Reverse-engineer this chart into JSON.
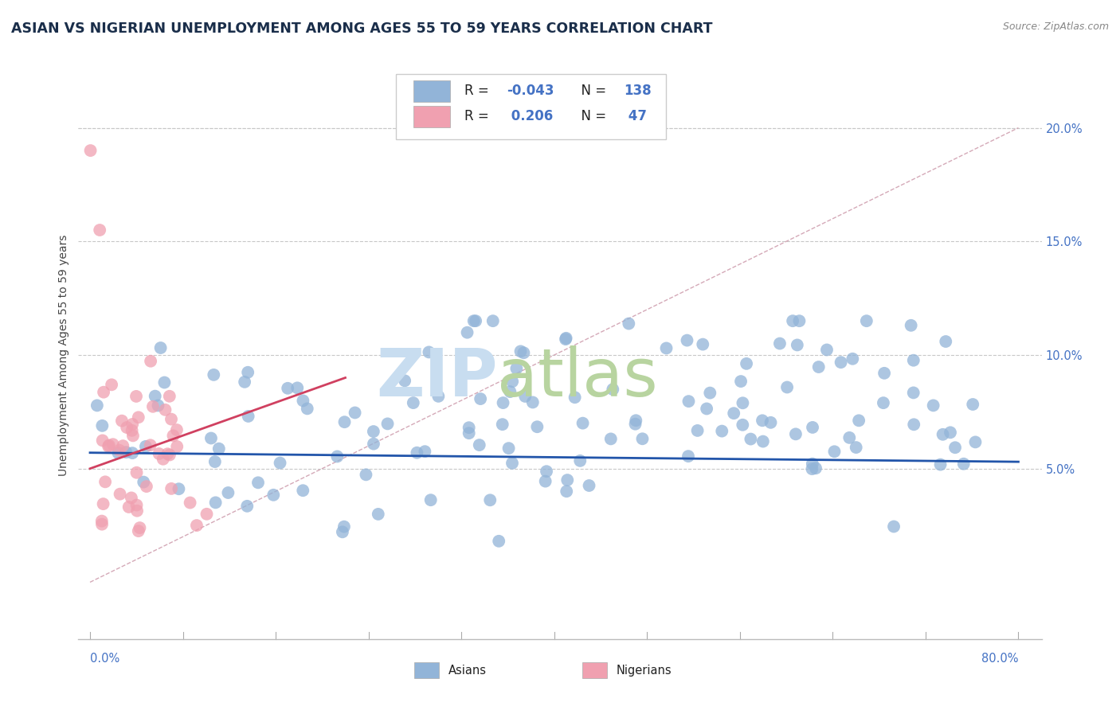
{
  "title": "ASIAN VS NIGERIAN UNEMPLOYMENT AMONG AGES 55 TO 59 YEARS CORRELATION CHART",
  "source": "Source: ZipAtlas.com",
  "ylabel": "Unemployment Among Ages 55 to 59 years",
  "ytick_labels": [
    "5.0%",
    "10.0%",
    "15.0%",
    "20.0%"
  ],
  "ytick_values": [
    0.05,
    0.1,
    0.15,
    0.2
  ],
  "xlim": [
    -0.01,
    0.82
  ],
  "ylim": [
    -0.025,
    0.225
  ],
  "asian_color": "#92b4d8",
  "nigerian_color": "#f0a0b0",
  "blue_line_color": "#2255aa",
  "pink_line_color": "#d04060",
  "ref_line_color": "#d0a0b0",
  "watermark_zip_color": "#c8ddf0",
  "watermark_atlas_color": "#b8d4a0",
  "title_color": "#1a2e4a",
  "axis_label_color": "#4472c4",
  "r_value_color": "#4472c4",
  "n_label_color": "#222222",
  "legend_box_color": "#e8e8e8",
  "asian_r": -0.043,
  "asian_n": 138,
  "nigerian_r": 0.206,
  "nigerian_n": 47,
  "blue_line_x0": 0.0,
  "blue_line_x1": 0.8,
  "blue_line_y0": 0.057,
  "blue_line_y1": 0.053,
  "pink_line_x0": 0.0,
  "pink_line_x1": 0.22,
  "pink_line_y0": 0.05,
  "pink_line_y1": 0.09,
  "ref_line_x0": 0.0,
  "ref_line_x1": 0.8,
  "ref_line_y0": 0.0,
  "ref_line_y1": 0.2
}
